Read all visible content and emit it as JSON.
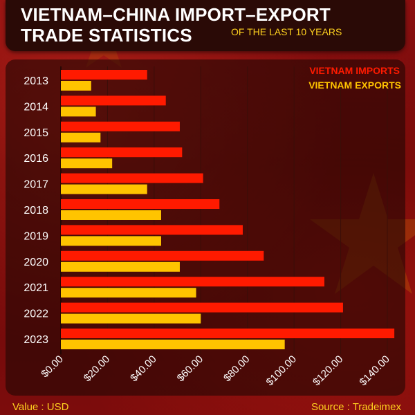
{
  "header": {
    "title": "VIETNAM–CHINA IMPORT–EXPORT\nTRADE STATISTICS",
    "subtitle": "OF THE LAST 10 YEARS"
  },
  "footer": {
    "value_label": "Value : USD",
    "source_label": "Source : Tradeimex"
  },
  "colors": {
    "imports": "#ff1a00",
    "exports": "#ffc400",
    "grid": "#3a0e08",
    "label": "#ffffff"
  },
  "chart_data": {
    "type": "bar",
    "orientation": "horizontal",
    "categories": [
      "2013",
      "2014",
      "2015",
      "2016",
      "2017",
      "2018",
      "2019",
      "2020",
      "2021",
      "2022",
      "2023"
    ],
    "series": [
      {
        "name": "VIETNAM IMPORTS",
        "values": [
          37,
          45,
          51,
          52,
          61,
          68,
          78,
          87,
          113,
          121,
          143
        ]
      },
      {
        "name": "VIETNAM EXPORTS",
        "values": [
          13,
          15,
          17,
          22,
          37,
          43,
          43,
          51,
          58,
          60,
          96
        ]
      }
    ],
    "x_ticks": [
      "$0.00",
      "$20.00",
      "$40.00",
      "$60.00",
      "$80.00",
      "$100.00",
      "$120.00",
      "$140.00"
    ],
    "xlim": [
      0,
      140
    ],
    "legend_position": "top-right",
    "grid": true
  }
}
